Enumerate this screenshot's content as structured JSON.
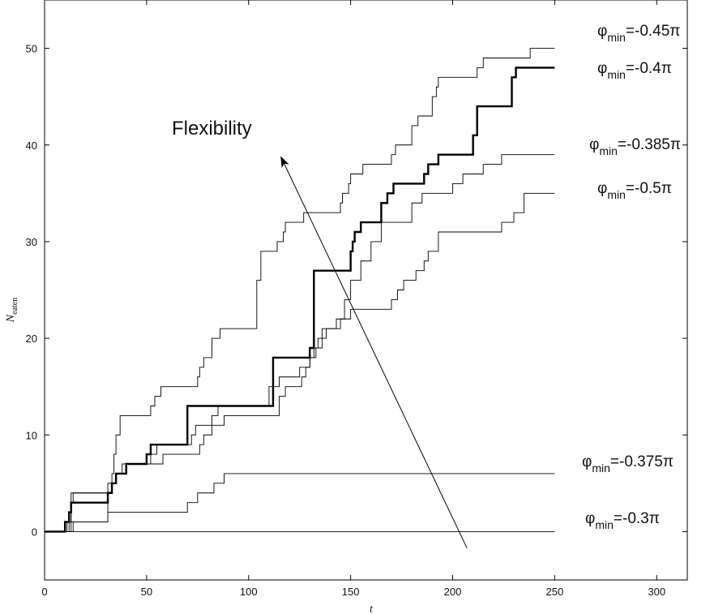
{
  "chart_data": {
    "type": "line",
    "xlabel": "t",
    "ylabel": "N",
    "ylabel_sub": "eaten",
    "xlim": [
      0,
      315
    ],
    "ylim": [
      -5,
      55
    ],
    "xticks": [
      0,
      50,
      100,
      150,
      200,
      250,
      300
    ],
    "yticks": [
      0,
      10,
      20,
      30,
      40,
      50
    ],
    "grid": false,
    "annotation": {
      "text": "Flexibility",
      "arrow_from": [
        207,
        -1.7
      ],
      "arrow_to": [
        116,
        38.7
      ]
    },
    "series": [
      {
        "name": "-0.45π",
        "label_prefix": "φ",
        "label_sub": "min",
        "label_value": "=-0.45π",
        "bold": false,
        "x": [
          0,
          13,
          14,
          31,
          33,
          34,
          35,
          37,
          52,
          54,
          57,
          58,
          60,
          62,
          72,
          75,
          76,
          78,
          82,
          86,
          88,
          90,
          96,
          104,
          106,
          114,
          117,
          118,
          125,
          127,
          130,
          133,
          142,
          145,
          146,
          149,
          150,
          152,
          156,
          163,
          165,
          170,
          172,
          174,
          180,
          183,
          186,
          188,
          190,
          192,
          193,
          195,
          212,
          215,
          218,
          228,
          229,
          231,
          233,
          238,
          250
        ],
        "y": [
          0,
          0,
          1,
          5,
          6,
          8,
          10,
          12,
          13,
          14,
          15,
          15,
          15,
          15,
          15,
          16,
          17,
          18,
          20,
          21,
          21,
          21,
          21,
          26,
          29,
          30,
          31,
          32,
          32,
          33,
          33,
          33,
          33,
          34,
          35,
          36,
          37,
          37,
          38,
          38,
          38,
          39,
          40,
          40,
          42,
          43,
          43,
          43,
          45,
          46,
          47,
          47,
          48,
          49,
          49,
          49,
          49,
          49,
          49,
          50,
          50
        ]
      },
      {
        "name": "-0.4π",
        "label_prefix": "φ",
        "label_sub": "min",
        "label_value": "=-0.4π",
        "bold": true,
        "x": [
          0,
          10,
          12,
          13,
          31,
          33,
          35,
          37,
          40,
          50,
          52,
          55,
          60,
          70,
          72,
          85,
          110,
          112,
          120,
          130,
          132,
          150,
          151,
          152,
          154,
          155,
          156,
          157,
          165,
          168,
          171,
          172,
          174,
          186,
          188,
          193,
          195,
          210,
          212,
          229,
          231,
          233,
          240,
          250
        ],
        "y": [
          0,
          1,
          2,
          3,
          4,
          5,
          6,
          6,
          7,
          8,
          9,
          9,
          9,
          13,
          13,
          13,
          13,
          18,
          18,
          19,
          27,
          29,
          30,
          31,
          31,
          32,
          32,
          32,
          34,
          35,
          36,
          36,
          36,
          37,
          38,
          39,
          39,
          41,
          44,
          47,
          48,
          48,
          48,
          48
        ]
      },
      {
        "name": "-0.385π",
        "label_prefix": "φ",
        "label_sub": "min",
        "label_value": "=-0.385π",
        "bold": false,
        "x": [
          0,
          11,
          13,
          14,
          33,
          35,
          38,
          52,
          55,
          58,
          60,
          72,
          76,
          78,
          82,
          85,
          95,
          106,
          110,
          115,
          118,
          122,
          125,
          130,
          133,
          136,
          138,
          140,
          143,
          147,
          150,
          155,
          160,
          165,
          170,
          175,
          180,
          185,
          200,
          205,
          215,
          220,
          222,
          223,
          224,
          225,
          232,
          235,
          250
        ],
        "y": [
          0,
          1,
          3,
          4,
          5,
          6,
          7,
          7,
          7,
          8,
          8,
          8,
          9,
          10,
          12,
          13,
          13,
          13,
          15,
          16,
          16,
          16,
          17,
          18,
          19,
          20,
          21,
          21,
          22,
          24,
          26,
          28,
          30,
          32,
          32,
          32,
          34,
          35,
          36,
          37,
          38,
          38,
          38,
          38,
          39,
          39,
          39,
          39,
          39
        ]
      },
      {
        "name": "-0.5π",
        "label_prefix": "φ",
        "label_sub": "min",
        "label_value": "=-0.5π",
        "bold": false,
        "x": [
          0,
          11,
          13,
          14,
          30,
          33,
          35,
          37,
          40,
          48,
          52,
          55,
          60,
          70,
          72,
          74,
          80,
          85,
          88,
          100,
          115,
          118,
          126,
          128,
          130,
          132,
          134,
          136,
          140,
          143,
          145,
          150,
          165,
          170,
          173,
          176,
          182,
          186,
          188,
          193,
          200,
          205,
          208,
          210,
          215,
          220,
          224,
          230,
          235,
          250
        ],
        "y": [
          0,
          0,
          4,
          4,
          4,
          5,
          6,
          6,
          7,
          7,
          8,
          9,
          9,
          9,
          10,
          11,
          11,
          11,
          12,
          12,
          14,
          15,
          16,
          17,
          18,
          19,
          20,
          21,
          21,
          21,
          22,
          23,
          23,
          24,
          25,
          26,
          27,
          28,
          29,
          31,
          31,
          31,
          31,
          31,
          31,
          31,
          32,
          33,
          35,
          35
        ]
      },
      {
        "name": "-0.375π",
        "label_prefix": "φ",
        "label_sub": "min",
        "label_value": "=-0.375π",
        "bold": false,
        "x": [
          0,
          12,
          30,
          31,
          70,
          72,
          75,
          80,
          83,
          85,
          88,
          250
        ],
        "y": [
          0,
          1,
          1,
          2,
          3,
          3,
          4,
          4,
          5,
          5,
          6,
          6
        ]
      },
      {
        "name": "-0.3π",
        "label_prefix": "φ",
        "label_sub": "min",
        "label_value": "=-0.3π",
        "bold": false,
        "x": [
          0,
          250
        ],
        "y": [
          0,
          0
        ]
      }
    ]
  }
}
